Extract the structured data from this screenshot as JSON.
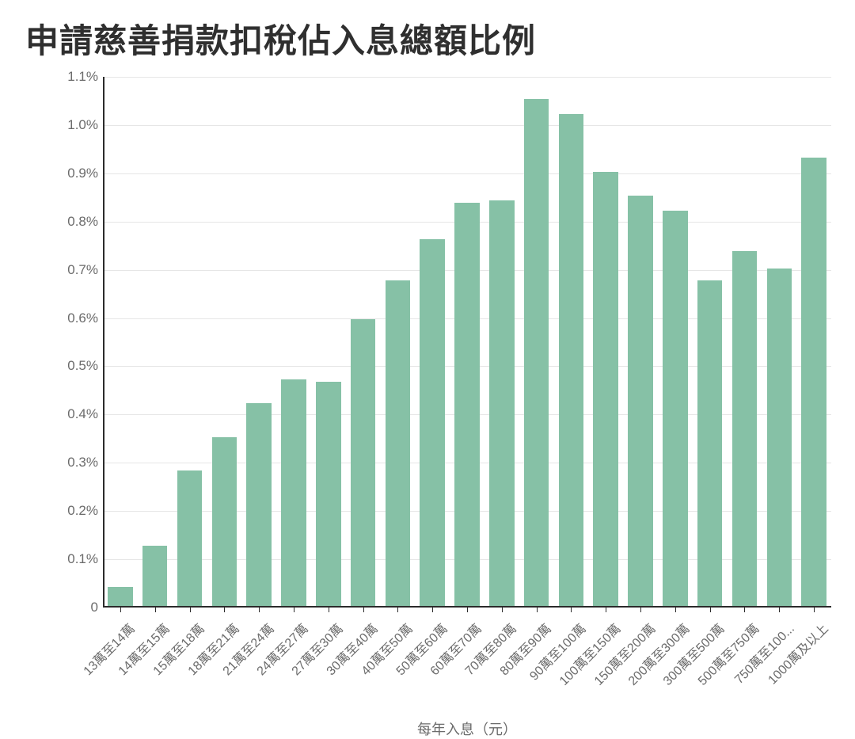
{
  "chart": {
    "type": "bar",
    "title": "申請慈善捐款扣稅佔入息總額比例",
    "title_fontsize": 42,
    "title_color": "#2f2f2f",
    "x_axis_title": "每年入息（元）",
    "x_axis_title_fontsize": 18,
    "categories": [
      "13萬至14萬",
      "14萬至15萬",
      "15萬至18萬",
      "18萬至21萬",
      "21萬至24萬",
      "24萬至27萬",
      "27萬至30萬",
      "30萬至40萬",
      "40萬至50萬",
      "50萬至60萬",
      "60萬至70萬",
      "70萬至80萬",
      "80萬至90萬",
      "90萬至100萬",
      "100萬至150萬",
      "150萬至200萬",
      "200萬至300萬",
      "300萬至500萬",
      "500萬至750萬",
      "750萬至100...",
      "1000萬及以上"
    ],
    "values": [
      0.04,
      0.125,
      0.28,
      0.35,
      0.42,
      0.47,
      0.465,
      0.595,
      0.675,
      0.76,
      0.835,
      0.84,
      1.05,
      1.02,
      0.9,
      0.85,
      0.82,
      0.675,
      0.735,
      0.7,
      0.93
    ],
    "bar_color": "#86c1a6",
    "ylim": [
      0,
      1.1
    ],
    "ytick_step": 0.1,
    "ytick_labels": [
      "0",
      "0.1%",
      "0.2%",
      "0.3%",
      "0.4%",
      "0.5%",
      "0.6%",
      "0.7%",
      "0.8%",
      "0.9%",
      "1.0%",
      "1.1%"
    ],
    "grid_color": "#e6e6e6",
    "axis_color": "#2b2b2b",
    "background_color": "#ffffff",
    "label_color": "#6b6b6b",
    "tick_fontsize": 17,
    "x_tick_fontsize": 16,
    "bar_width_ratio": 0.72
  }
}
